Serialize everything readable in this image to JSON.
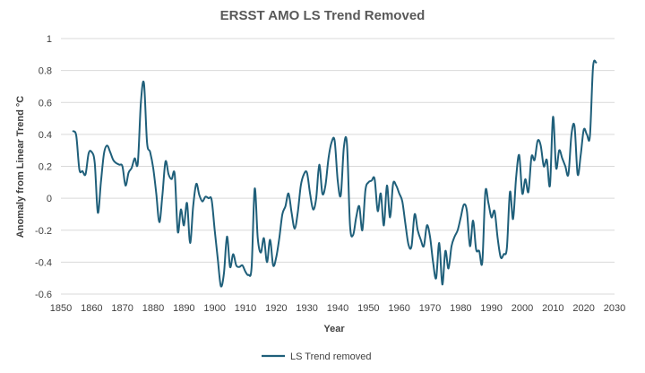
{
  "chart_data": {
    "type": "line",
    "title": "ERSST AMO LS Trend Removed",
    "xlabel": "Year",
    "ylabel": "Anomaly from Linear Trend °C",
    "xlim": [
      1850,
      2030
    ],
    "ylim": [
      -0.6,
      1
    ],
    "x_ticks": [
      "1850",
      "1860",
      "1870",
      "1880",
      "1890",
      "1900",
      "1910",
      "1920",
      "1930",
      "1940",
      "1950",
      "1960",
      "1970",
      "1980",
      "1990",
      "2000",
      "2010",
      "2020",
      "2030"
    ],
    "y_ticks": [
      "-0.6",
      "-0.4",
      "-0.2",
      "0",
      "0.2",
      "0.4",
      "0.6",
      "0.8",
      "1"
    ],
    "grid": "horizontal",
    "legend_position": "bottom",
    "line_color": "#1f5f7a",
    "series": [
      {
        "name": "LS Trend removed",
        "x": [
          1854,
          1855,
          1856,
          1857,
          1858,
          1859,
          1860,
          1861,
          1862,
          1863,
          1864,
          1865,
          1866,
          1867,
          1868,
          1869,
          1870,
          1871,
          1872,
          1873,
          1874,
          1875,
          1876,
          1877,
          1878,
          1879,
          1880,
          1881,
          1882,
          1883,
          1884,
          1885,
          1886,
          1887,
          1888,
          1889,
          1890,
          1891,
          1892,
          1893,
          1894,
          1895,
          1896,
          1897,
          1898,
          1899,
          1900,
          1901,
          1902,
          1903,
          1904,
          1905,
          1906,
          1907,
          1908,
          1909,
          1910,
          1911,
          1912,
          1913,
          1914,
          1915,
          1916,
          1917,
          1918,
          1919,
          1920,
          1921,
          1922,
          1923,
          1924,
          1925,
          1926,
          1927,
          1928,
          1929,
          1930,
          1931,
          1932,
          1933,
          1934,
          1935,
          1936,
          1937,
          1938,
          1939,
          1940,
          1941,
          1942,
          1943,
          1944,
          1945,
          1946,
          1947,
          1948,
          1949,
          1950,
          1951,
          1952,
          1953,
          1954,
          1955,
          1956,
          1957,
          1958,
          1959,
          1960,
          1961,
          1962,
          1963,
          1964,
          1965,
          1966,
          1967,
          1968,
          1969,
          1970,
          1971,
          1972,
          1973,
          1974,
          1975,
          1976,
          1977,
          1978,
          1979,
          1980,
          1981,
          1982,
          1983,
          1984,
          1985,
          1986,
          1987,
          1988,
          1989,
          1990,
          1991,
          1992,
          1993,
          1994,
          1995,
          1996,
          1997,
          1998,
          1999,
          2000,
          2001,
          2002,
          2003,
          2004,
          2005,
          2006,
          2007,
          2008,
          2009,
          2010,
          2011,
          2012,
          2013,
          2014,
          2015,
          2016,
          2017,
          2018,
          2019,
          2020,
          2021,
          2022,
          2023,
          2024
        ],
        "values": [
          0.42,
          0.39,
          0.18,
          0.17,
          0.15,
          0.28,
          0.29,
          0.22,
          -0.09,
          0.1,
          0.28,
          0.33,
          0.29,
          0.24,
          0.22,
          0.21,
          0.2,
          0.08,
          0.16,
          0.19,
          0.25,
          0.22,
          0.6,
          0.72,
          0.35,
          0.29,
          0.19,
          0.03,
          -0.15,
          0.02,
          0.23,
          0.15,
          0.12,
          0.15,
          -0.21,
          -0.07,
          -0.17,
          -0.03,
          -0.28,
          -0.05,
          0.09,
          0.02,
          -0.02,
          0.01,
          0.0,
          -0.01,
          -0.2,
          -0.38,
          -0.55,
          -0.47,
          -0.24,
          -0.43,
          -0.35,
          -0.42,
          -0.43,
          -0.42,
          -0.46,
          -0.48,
          -0.43,
          0.06,
          -0.25,
          -0.34,
          -0.25,
          -0.4,
          -0.26,
          -0.42,
          -0.37,
          -0.25,
          -0.1,
          -0.05,
          0.03,
          -0.09,
          -0.19,
          -0.09,
          0.08,
          0.15,
          0.16,
          0.03,
          -0.07,
          0.0,
          0.21,
          0.03,
          0.08,
          0.25,
          0.35,
          0.36,
          0.11,
          0.02,
          0.32,
          0.34,
          -0.17,
          -0.23,
          -0.12,
          -0.05,
          -0.2,
          0.05,
          0.1,
          0.11,
          0.12,
          -0.08,
          0.03,
          -0.17,
          0.08,
          -0.12,
          0.09,
          0.08,
          0.03,
          -0.02,
          -0.16,
          -0.29,
          -0.3,
          -0.1,
          -0.2,
          -0.26,
          -0.3,
          -0.17,
          -0.24,
          -0.4,
          -0.5,
          -0.28,
          -0.54,
          -0.33,
          -0.44,
          -0.3,
          -0.24,
          -0.2,
          -0.12,
          -0.04,
          -0.08,
          -0.3,
          -0.14,
          -0.32,
          -0.33,
          -0.4,
          0.04,
          -0.03,
          -0.12,
          -0.08,
          -0.25,
          -0.37,
          -0.35,
          -0.31,
          0.04,
          -0.13,
          0.13,
          0.27,
          0.03,
          0.12,
          0.04,
          0.26,
          0.24,
          0.36,
          0.33,
          0.2,
          0.24,
          0.08,
          0.51,
          0.19,
          0.3,
          0.25,
          0.2,
          0.15,
          0.4,
          0.45,
          0.15,
          0.27,
          0.43,
          0.4,
          0.39,
          0.82,
          0.85
        ]
      }
    ]
  }
}
